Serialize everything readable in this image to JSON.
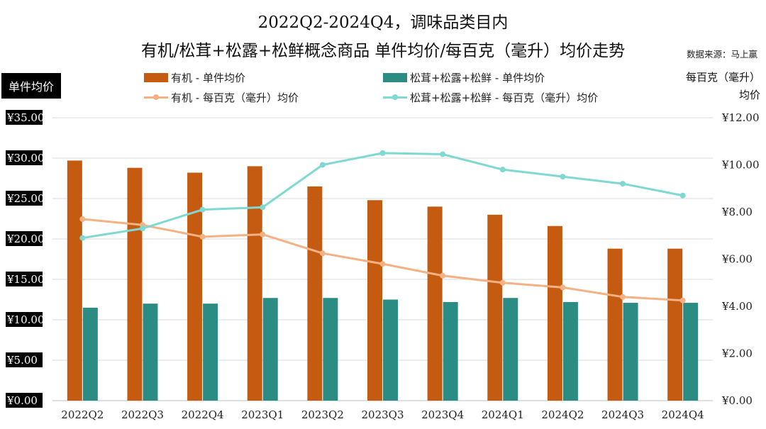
{
  "title_line1": "2022Q2-2024Q4，调味品类目内",
  "title_line2": "有机/松茸+松露+松鲜概念商品 单件均价/每百克（毫升）均价走势",
  "source": "数据来源：马上赢",
  "colors": {
    "organic_bar": "#C55A11",
    "mushroom_bar": "#2A8C82",
    "organic_line": "#F4B183",
    "mushroom_line": "#7FD9D2"
  },
  "chart_data": {
    "type": "bar",
    "categories": [
      "2022Q2",
      "2022Q3",
      "2022Q4",
      "2023Q1",
      "2023Q2",
      "2023Q3",
      "2023Q4",
      "2024Q1",
      "2024Q2",
      "2024Q3",
      "2024Q4"
    ],
    "left_axis": {
      "label": "单件均价",
      "ylim": [
        0,
        35
      ],
      "ticks": [
        "¥0.00",
        "¥5.00",
        "¥10.00",
        "¥15.00",
        "¥20.00",
        "¥25.00",
        "¥30.00",
        "¥35.00"
      ],
      "tick_values": [
        0,
        5,
        10,
        15,
        20,
        25,
        30,
        35
      ]
    },
    "right_axis": {
      "label_line1": "每百克（毫升）",
      "label_line2": "均价",
      "ylim": [
        0,
        12
      ],
      "ticks": [
        "¥0.00",
        "¥2.00",
        "¥4.00",
        "¥6.00",
        "¥8.00",
        "¥10.00",
        "¥12.00"
      ],
      "tick_values": [
        0,
        2,
        4,
        6,
        8,
        10,
        12
      ]
    },
    "series": [
      {
        "name": "有机 - 单件均价",
        "kind": "bar",
        "axis": "left",
        "values": [
          29.7,
          28.8,
          28.2,
          29.0,
          26.5,
          24.8,
          24.0,
          23.0,
          21.6,
          18.8,
          18.8
        ]
      },
      {
        "name": "松茸+松露+松鲜 - 单件均价",
        "kind": "bar",
        "axis": "left",
        "values": [
          11.5,
          12.0,
          12.0,
          12.7,
          12.7,
          12.5,
          12.2,
          12.7,
          12.2,
          12.1,
          12.1
        ]
      },
      {
        "name": "有机 - 每百克（毫升）均价",
        "kind": "line",
        "axis": "right",
        "values": [
          7.7,
          7.45,
          6.95,
          7.05,
          6.25,
          5.8,
          5.3,
          5.0,
          4.8,
          4.4,
          4.25
        ]
      },
      {
        "name": "松茸+松露+松鲜 - 每百克（毫升）均价",
        "kind": "line",
        "axis": "right",
        "values": [
          6.9,
          7.3,
          8.1,
          8.2,
          10.0,
          10.5,
          10.45,
          9.8,
          9.5,
          9.2,
          8.7
        ]
      }
    ]
  }
}
